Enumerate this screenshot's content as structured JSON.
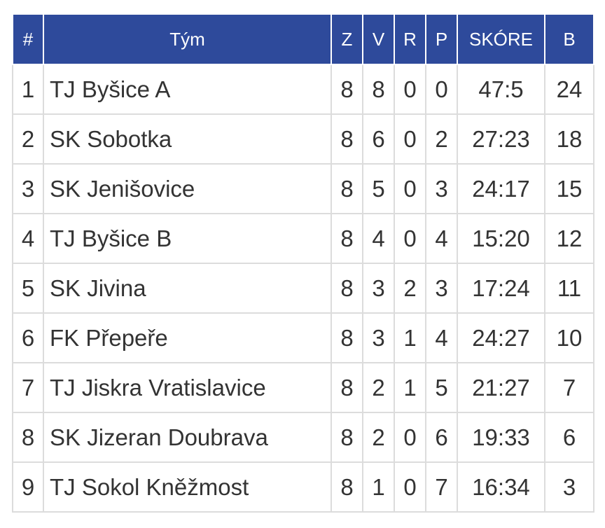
{
  "standings": {
    "headers": {
      "rank": "#",
      "team": "Tým",
      "played": "Z",
      "won": "V",
      "drawn": "R",
      "lost": "P",
      "score": "SKÓRE",
      "points": "B"
    },
    "rows": [
      {
        "rank": "1",
        "team": "TJ Byšice A",
        "played": "8",
        "won": "8",
        "drawn": "0",
        "lost": "0",
        "score": "47:5",
        "points": "24"
      },
      {
        "rank": "2",
        "team": "SK Sobotka",
        "played": "8",
        "won": "6",
        "drawn": "0",
        "lost": "2",
        "score": "27:23",
        "points": "18"
      },
      {
        "rank": "3",
        "team": "SK Jenišovice",
        "played": "8",
        "won": "5",
        "drawn": "0",
        "lost": "3",
        "score": "24:17",
        "points": "15"
      },
      {
        "rank": "4",
        "team": "TJ Byšice B",
        "played": "8",
        "won": "4",
        "drawn": "0",
        "lost": "4",
        "score": "15:20",
        "points": "12"
      },
      {
        "rank": "5",
        "team": "SK Jivina",
        "played": "8",
        "won": "3",
        "drawn": "2",
        "lost": "3",
        "score": "17:24",
        "points": "11"
      },
      {
        "rank": "6",
        "team": "FK Přepeře",
        "played": "8",
        "won": "3",
        "drawn": "1",
        "lost": "4",
        "score": "24:27",
        "points": "10"
      },
      {
        "rank": "7",
        "team": "TJ Jiskra Vratislavice",
        "played": "8",
        "won": "2",
        "drawn": "1",
        "lost": "5",
        "score": "21:27",
        "points": "7"
      },
      {
        "rank": "8",
        "team": "SK Jizeran Doubrava",
        "played": "8",
        "won": "2",
        "drawn": "0",
        "lost": "6",
        "score": "19:33",
        "points": "6"
      },
      {
        "rank": "9",
        "team": "TJ Sokol Kněžmost",
        "played": "8",
        "won": "1",
        "drawn": "0",
        "lost": "7",
        "score": "16:34",
        "points": "3"
      }
    ]
  },
  "colors": {
    "header_bg": "#2e4a9b",
    "header_text": "#ffffff",
    "cell_text": "#333333",
    "grid_line": "#dcdcdc"
  }
}
